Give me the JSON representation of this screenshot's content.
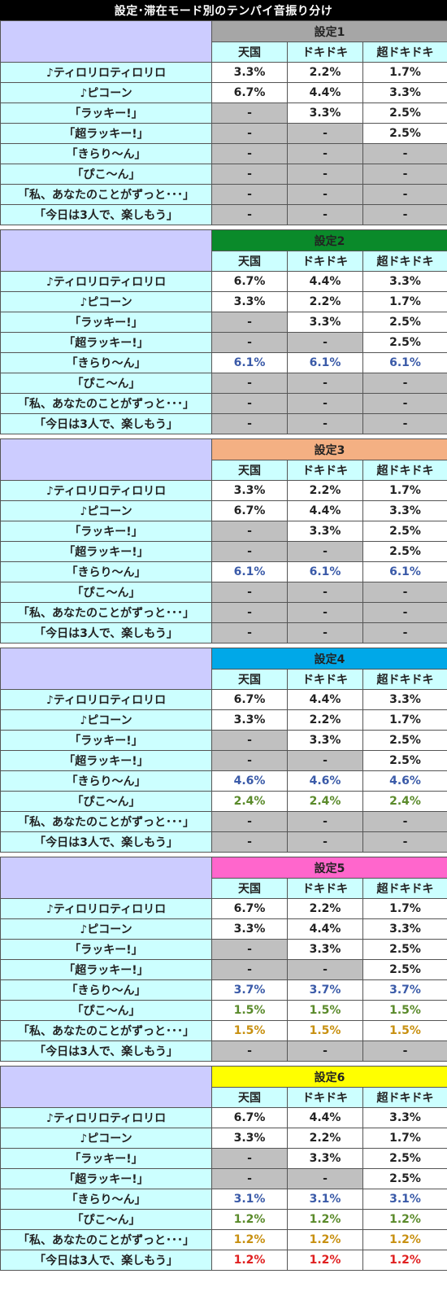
{
  "title": "設定･滞在モード別のテンパイ音振り分け",
  "columns": [
    "天国",
    "ドキドキ",
    "超ドキドキ"
  ],
  "row_labels": [
    "♪ティロリロティロリロ",
    "♪ピコーン",
    "「ラッキー!」",
    "「超ラッキー!」",
    "「きらり～ん」",
    "「ぴこ～ん」",
    "「私、あなたのことがずっと･･･」",
    "「今日は3人で、楽しもう」"
  ],
  "value_colors": {
    "default": "#222222",
    "kirarin": "#3a5aa8",
    "pikon": "#5a8a2a",
    "watashi": "#c89010",
    "kyou": "#e02020"
  },
  "settings": [
    {
      "label": "設定1",
      "header_color": "#a6a6a6",
      "rows": [
        [
          "3.3%",
          "2.2%",
          "1.7%"
        ],
        [
          "6.7%",
          "4.4%",
          "3.3%"
        ],
        [
          "-",
          "3.3%",
          "2.5%"
        ],
        [
          "-",
          "-",
          "2.5%"
        ],
        [
          "-",
          "-",
          "-"
        ],
        [
          "-",
          "-",
          "-"
        ],
        [
          "-",
          "-",
          "-"
        ],
        [
          "-",
          "-",
          "-"
        ]
      ]
    },
    {
      "label": "設定2",
      "header_color": "#0a8a2a",
      "rows": [
        [
          "6.7%",
          "4.4%",
          "3.3%"
        ],
        [
          "3.3%",
          "2.2%",
          "1.7%"
        ],
        [
          "-",
          "3.3%",
          "2.5%"
        ],
        [
          "-",
          "-",
          "2.5%"
        ],
        [
          "6.1%",
          "6.1%",
          "6.1%"
        ],
        [
          "-",
          "-",
          "-"
        ],
        [
          "-",
          "-",
          "-"
        ],
        [
          "-",
          "-",
          "-"
        ]
      ]
    },
    {
      "label": "設定3",
      "header_color": "#f4b083",
      "rows": [
        [
          "3.3%",
          "2.2%",
          "1.7%"
        ],
        [
          "6.7%",
          "4.4%",
          "3.3%"
        ],
        [
          "-",
          "3.3%",
          "2.5%"
        ],
        [
          "-",
          "-",
          "2.5%"
        ],
        [
          "6.1%",
          "6.1%",
          "6.1%"
        ],
        [
          "-",
          "-",
          "-"
        ],
        [
          "-",
          "-",
          "-"
        ],
        [
          "-",
          "-",
          "-"
        ]
      ]
    },
    {
      "label": "設定4",
      "header_color": "#00a8e8",
      "rows": [
        [
          "6.7%",
          "4.4%",
          "3.3%"
        ],
        [
          "3.3%",
          "2.2%",
          "1.7%"
        ],
        [
          "-",
          "3.3%",
          "2.5%"
        ],
        [
          "-",
          "-",
          "2.5%"
        ],
        [
          "4.6%",
          "4.6%",
          "4.6%"
        ],
        [
          "2.4%",
          "2.4%",
          "2.4%"
        ],
        [
          "-",
          "-",
          "-"
        ],
        [
          "-",
          "-",
          "-"
        ]
      ]
    },
    {
      "label": "設定5",
      "header_color": "#ff66cc",
      "rows": [
        [
          "6.7%",
          "2.2%",
          "1.7%"
        ],
        [
          "3.3%",
          "4.4%",
          "3.3%"
        ],
        [
          "-",
          "3.3%",
          "2.5%"
        ],
        [
          "-",
          "-",
          "2.5%"
        ],
        [
          "3.7%",
          "3.7%",
          "3.7%"
        ],
        [
          "1.5%",
          "1.5%",
          "1.5%"
        ],
        [
          "1.5%",
          "1.5%",
          "1.5%"
        ],
        [
          "-",
          "-",
          "-"
        ]
      ]
    },
    {
      "label": "設定6",
      "header_color": "#ffff00",
      "rows": [
        [
          "6.7%",
          "4.4%",
          "3.3%"
        ],
        [
          "3.3%",
          "2.2%",
          "1.7%"
        ],
        [
          "-",
          "3.3%",
          "2.5%"
        ],
        [
          "-",
          "-",
          "2.5%"
        ],
        [
          "3.1%",
          "3.1%",
          "3.1%"
        ],
        [
          "1.2%",
          "1.2%",
          "1.2%"
        ],
        [
          "1.2%",
          "1.2%",
          "1.2%"
        ],
        [
          "1.2%",
          "1.2%",
          "1.2%"
        ]
      ]
    }
  ]
}
